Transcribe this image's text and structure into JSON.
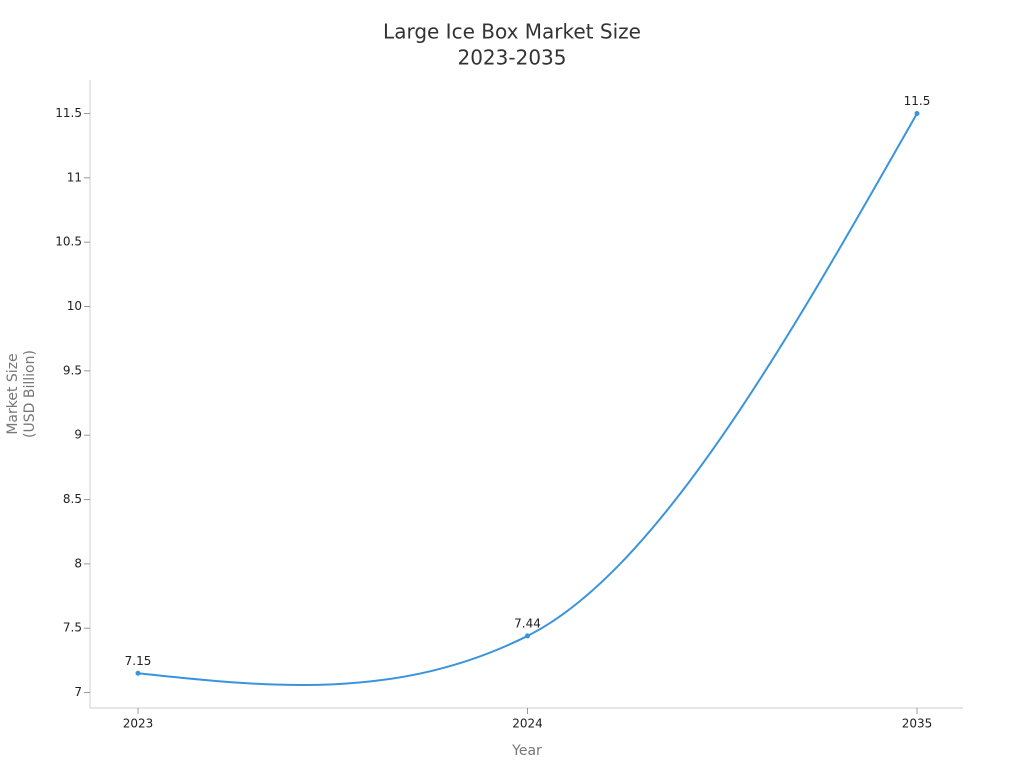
{
  "chart_data": {
    "type": "line",
    "title": "Large Ice Box Market Size",
    "subtitle": "2023-2035",
    "xlabel": "Year",
    "ylabel": [
      "Market Size",
      "(USD Billion)"
    ],
    "categories": [
      "2023",
      "2024",
      "2035"
    ],
    "series": [
      {
        "name": "Market Size",
        "color": "#3a93dd",
        "values": [
          7.15,
          7.44,
          11.5
        ]
      }
    ],
    "ylim": [
      6.88,
      11.76
    ],
    "yticks": [
      7,
      7.5,
      8,
      8.5,
      9,
      9.5,
      10,
      10.5,
      11,
      11.5
    ]
  }
}
